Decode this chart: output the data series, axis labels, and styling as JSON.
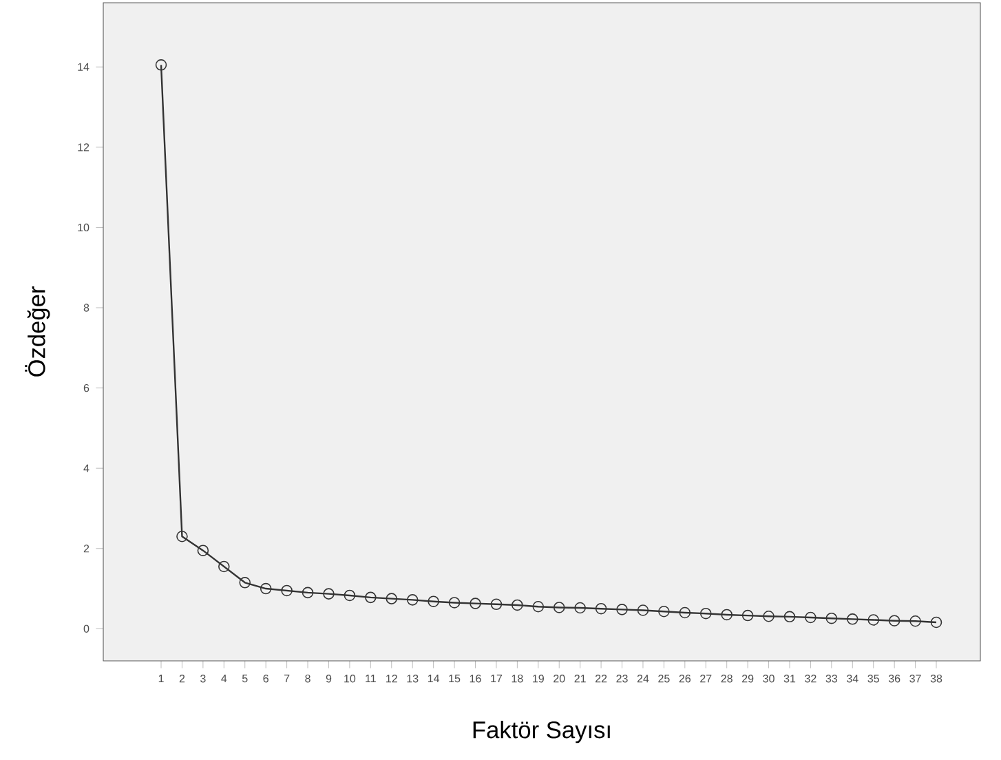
{
  "chart_data": {
    "type": "line",
    "xlabel": "Faktör Sayısı",
    "ylabel": "Özdeğer",
    "categories": [
      "1",
      "2",
      "3",
      "4",
      "5",
      "6",
      "7",
      "8",
      "9",
      "10",
      "11",
      "12",
      "13",
      "14",
      "15",
      "16",
      "17",
      "18",
      "19",
      "20",
      "21",
      "22",
      "23",
      "24",
      "25",
      "26",
      "27",
      "28",
      "29",
      "30",
      "31",
      "32",
      "33",
      "34",
      "35",
      "36",
      "37",
      "38"
    ],
    "values": [
      14.05,
      2.3,
      1.95,
      1.55,
      1.15,
      1.0,
      0.95,
      0.9,
      0.87,
      0.83,
      0.78,
      0.75,
      0.72,
      0.68,
      0.65,
      0.63,
      0.61,
      0.59,
      0.55,
      0.53,
      0.52,
      0.5,
      0.48,
      0.46,
      0.43,
      0.4,
      0.38,
      0.35,
      0.33,
      0.31,
      0.3,
      0.28,
      0.26,
      0.24,
      0.22,
      0.2,
      0.19,
      0.16
    ],
    "color": "#333333",
    "marker": "circle",
    "line_style": "solid",
    "grid": false,
    "ylim": [
      -0.8,
      15.6
    ],
    "yticks": [
      0,
      2,
      4,
      6,
      8,
      10,
      12,
      14
    ]
  }
}
